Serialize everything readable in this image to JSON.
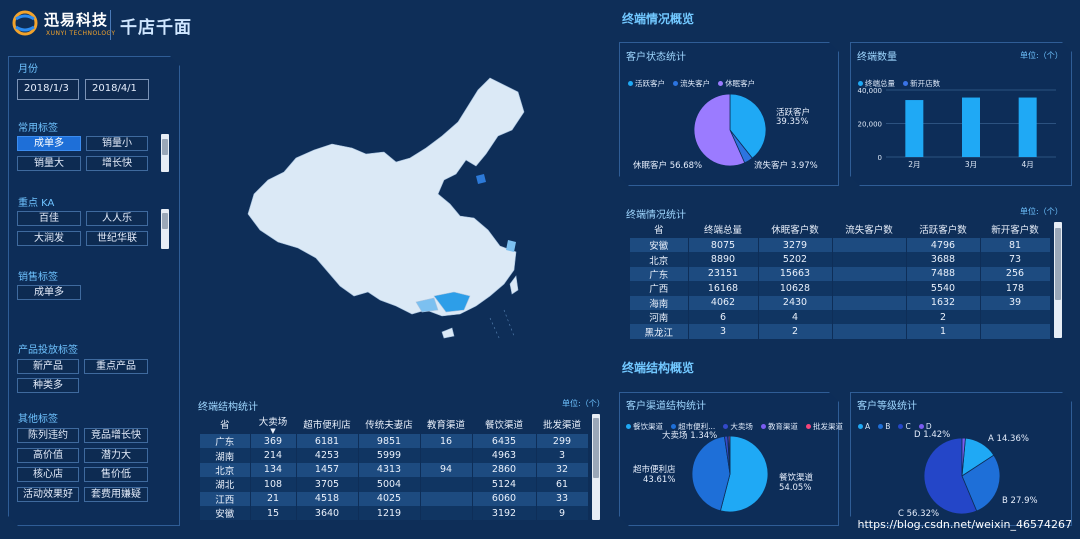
{
  "header": {
    "brand_cn": "迅易科技",
    "brand_en": "XUNYI TECHNOLOGY",
    "title": "千店千面"
  },
  "filters": {
    "month_title": "月份",
    "date_start": "2018/1/3",
    "date_end": "2018/4/1",
    "common_title": "常用标签",
    "common_tags": [
      "成单多",
      "销量小",
      "销量大",
      "增长快"
    ],
    "ka_title": "重点 KA",
    "ka_tags": [
      "百佳",
      "人人乐",
      "大润发",
      "世纪华联"
    ],
    "sales_title": "销售标签",
    "sales_tags": [
      "成单多"
    ],
    "product_title": "产品投放标签",
    "product_tags": [
      "新产品",
      "重点产品",
      "种类多"
    ],
    "other_title": "其他标签",
    "other_tags": [
      "陈列违约",
      "竞品增长快",
      "高价值",
      "潜力大",
      "核心店",
      "售价低",
      "活动效果好",
      "套费用嫌疑"
    ]
  },
  "terminal_overview": {
    "title": "终端情况概览",
    "customer_status": {
      "title": "客户状态统计",
      "legend": [
        "活跃客户",
        "流失客户",
        "休眠客户"
      ],
      "labels": [
        {
          "name": "活跃客户",
          "pct": "39.35%"
        },
        {
          "name": "流失客户",
          "pct": "3.97%"
        },
        {
          "name": "休眠客户",
          "pct": "56.68%"
        }
      ],
      "colors": [
        "#1fa9f5",
        "#2c74e0",
        "#9b7bff"
      ]
    },
    "terminal_count": {
      "title": "终端数量",
      "unit": "单位:（个）",
      "legend": [
        "终端总量",
        "新开店数"
      ],
      "y_ticks": [
        "40,000",
        "20,000",
        "0"
      ],
      "colors": [
        "#1fa9f5",
        "#3a73e6"
      ]
    },
    "stats_table": {
      "title": "终端情况统计",
      "unit": "单位:（个）",
      "columns": [
        "省",
        "终端总量",
        "休眠客户数",
        "流失客户数",
        "活跃客户数",
        "新开客户数"
      ],
      "rows": [
        [
          "安徽",
          "8075",
          "3279",
          "",
          "4796",
          "81"
        ],
        [
          "北京",
          "8890",
          "5202",
          "",
          "3688",
          "73"
        ],
        [
          "广东",
          "23151",
          "15663",
          "",
          "7488",
          "256"
        ],
        [
          "广西",
          "16168",
          "10628",
          "",
          "5540",
          "178"
        ],
        [
          "海南",
          "4062",
          "2430",
          "",
          "1632",
          "39"
        ],
        [
          "河南",
          "6",
          "4",
          "",
          "2",
          ""
        ],
        [
          "黑龙江",
          "3",
          "2",
          "",
          "1",
          ""
        ]
      ]
    }
  },
  "structure_overview": {
    "title": "终端结构概览",
    "channel": {
      "title": "客户渠道结构统计",
      "legend": [
        "餐饮渠道",
        "超市便利...",
        "大卖场",
        "教育渠道",
        "批发渠道"
      ],
      "legend_colors": [
        "#1fa9f5",
        "#1e6fd8",
        "#3349c9",
        "#7a5cf0",
        "#f5447a"
      ],
      "labels": [
        {
          "name": "大卖场",
          "pct": "1.34%"
        },
        {
          "name": "超市便利店",
          "pct": "43.61%"
        },
        {
          "name": "餐饮渠道",
          "pct": "54.05%"
        }
      ]
    },
    "grade": {
      "title": "客户等级统计",
      "legend": [
        "A",
        "B",
        "C",
        "D"
      ],
      "legend_colors": [
        "#1fa9f5",
        "#1e6fd8",
        "#2446c8",
        "#7a5cf0"
      ],
      "labels": [
        {
          "name": "D",
          "pct": "1.42%"
        },
        {
          "name": "A",
          "pct": "14.36%"
        },
        {
          "name": "B",
          "pct": "27.9%"
        },
        {
          "name": "C",
          "pct": "56.32%"
        }
      ]
    }
  },
  "structure_table": {
    "title": "终端结构统计",
    "unit": "单位:（个）",
    "columns": [
      "省",
      "大卖场",
      "超市便利店",
      "传统夫妻店",
      "教育渠道",
      "餐饮渠道",
      "批发渠道"
    ],
    "rows": [
      [
        "广东",
        "369",
        "6181",
        "9851",
        "16",
        "6435",
        "299"
      ],
      [
        "湖南",
        "214",
        "4253",
        "5999",
        "",
        "4963",
        "3"
      ],
      [
        "北京",
        "134",
        "1457",
        "4313",
        "94",
        "2860",
        "32"
      ],
      [
        "湖北",
        "108",
        "3705",
        "5004",
        "",
        "5124",
        "61"
      ],
      [
        "江西",
        "21",
        "4518",
        "4025",
        "",
        "6060",
        "33"
      ],
      [
        "安徽",
        "15",
        "3640",
        "1219",
        "",
        "3192",
        "9"
      ]
    ]
  },
  "watermark": "https://blog.csdn.net/weixin_46574267",
  "chart_data": [
    {
      "type": "pie",
      "title": "客户状态统计",
      "categories": [
        "活跃客户",
        "流失客户",
        "休眠客户"
      ],
      "values": [
        39.35,
        3.97,
        56.68
      ]
    },
    {
      "type": "bar",
      "title": "终端数量",
      "categories": [
        "2月",
        "3月",
        "4月"
      ],
      "series": [
        {
          "name": "终端总量",
          "values": [
            34000,
            35500,
            35500
          ]
        },
        {
          "name": "新开店数",
          "values": [
            0,
            0,
            0
          ]
        }
      ],
      "ylim": [
        0,
        40000
      ],
      "y_ticks": [
        0,
        20000,
        40000
      ],
      "grid": true,
      "legend": "top-left"
    },
    {
      "type": "pie",
      "title": "客户渠道结构统计",
      "categories": [
        "餐饮渠道",
        "超市便利店",
        "大卖场",
        "教育渠道",
        "批发渠道"
      ],
      "values": [
        54.05,
        43.61,
        1.34,
        0.5,
        0.5
      ]
    },
    {
      "type": "pie",
      "title": "客户等级统计",
      "categories": [
        "A",
        "B",
        "C",
        "D"
      ],
      "values": [
        14.36,
        27.9,
        56.32,
        1.42
      ]
    }
  ]
}
